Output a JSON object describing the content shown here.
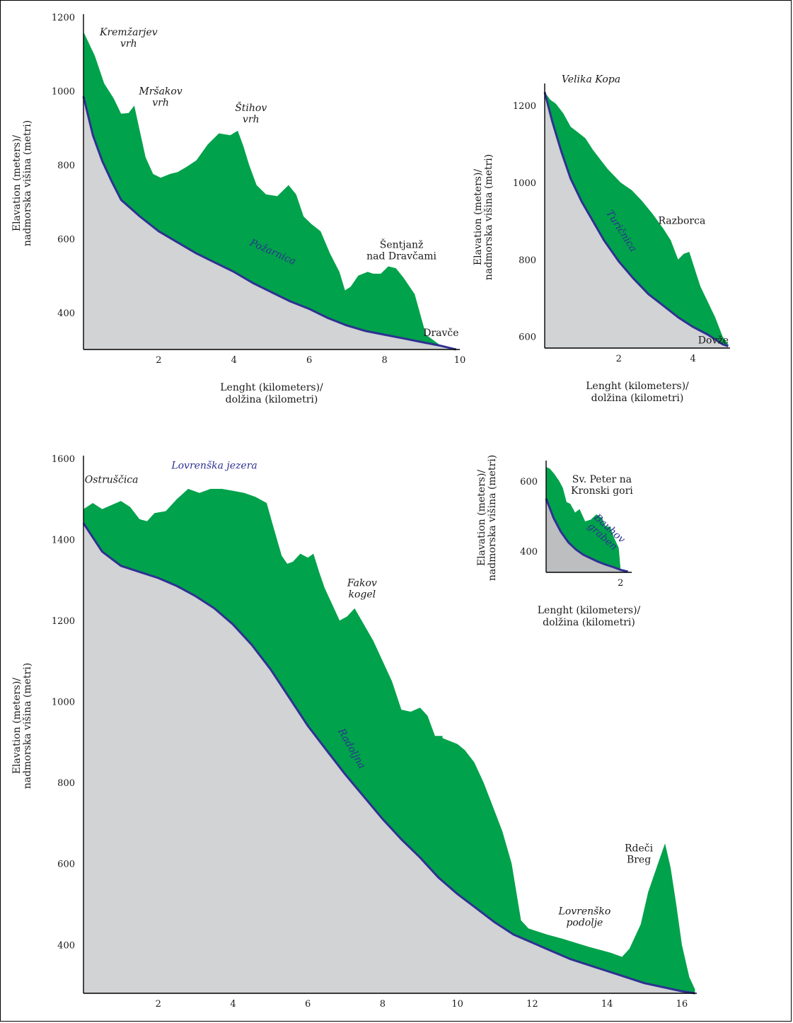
{
  "colors": {
    "terrain": "#00a24b",
    "valley": "#d1d3d4",
    "valley_small": "#bcbec0",
    "stream": "#2e3192",
    "axis": "#000000"
  },
  "chart_data": [
    {
      "id": "pozarnica",
      "type": "area",
      "xlim": [
        0,
        10
      ],
      "ylim": [
        300,
        1200
      ],
      "xticks": [
        "2",
        "4",
        "6",
        "8",
        "10"
      ],
      "yticks": [
        "400",
        "600",
        "800",
        "1000",
        "1200"
      ],
      "xlabel": [
        "Lenght (kilometers)/",
        "dolžina (kilometri)"
      ],
      "ylabel": [
        "Elavation (meters)/",
        "nadmorska višina (metri)"
      ],
      "terrain": {
        "x": [
          0,
          0.3,
          0.55,
          0.8,
          1.0,
          1.2,
          1.35,
          1.5,
          1.65,
          1.85,
          2.05,
          2.3,
          2.5,
          2.75,
          3.0,
          3.3,
          3.6,
          3.9,
          4.1,
          4.25,
          4.4,
          4.6,
          4.85,
          5.15,
          5.45,
          5.65,
          5.85,
          6.05,
          6.3,
          6.55,
          6.8,
          6.95,
          7.1,
          7.3,
          7.55,
          7.7,
          7.9,
          8.1,
          8.3,
          8.5,
          8.8,
          9.1,
          9.5,
          9.9
        ],
        "y": [
          1160,
          1095,
          1020,
          980,
          938,
          940,
          960,
          890,
          820,
          775,
          765,
          775,
          780,
          795,
          812,
          855,
          885,
          880,
          892,
          850,
          800,
          745,
          720,
          715,
          745,
          720,
          660,
          640,
          620,
          560,
          510,
          460,
          470,
          500,
          510,
          505,
          505,
          525,
          520,
          495,
          450,
          340,
          310,
          300
        ]
      },
      "stream": {
        "x": [
          0,
          0.25,
          0.5,
          0.75,
          1.0,
          1.5,
          2.0,
          2.5,
          3.0,
          3.5,
          4.0,
          4.5,
          5.0,
          5.5,
          6.0,
          6.5,
          7.0,
          7.5,
          8.0,
          8.5,
          9.0,
          9.5,
          9.9
        ],
        "y": [
          985,
          880,
          810,
          755,
          705,
          660,
          620,
          590,
          560,
          535,
          510,
          480,
          455,
          430,
          410,
          385,
          365,
          350,
          340,
          330,
          320,
          310,
          300
        ]
      },
      "labels": [
        {
          "text": [
            "Kremžarjev",
            "vrh"
          ],
          "x": 1.2,
          "y": 1150,
          "style": "italic"
        },
        {
          "text": [
            "Mršakov",
            "vrh"
          ],
          "x": 2.05,
          "y": 990,
          "style": "italic"
        },
        {
          "text": [
            "Štihov",
            "vrh"
          ],
          "x": 4.45,
          "y": 945,
          "style": "italic"
        },
        {
          "text": [
            "Šentjanž",
            "nad Dravčami"
          ],
          "x": 8.45,
          "y": 575,
          "style": "normal"
        },
        {
          "text": [
            "Dravče"
          ],
          "x": 9.5,
          "y": 336,
          "style": "normal"
        }
      ],
      "stream_name": "Požarnica",
      "stream_label_pos": {
        "x": 5.0,
        "y": 556,
        "rotate": 24
      }
    },
    {
      "id": "turicnica",
      "type": "area",
      "xlim": [
        0,
        5
      ],
      "ylim": [
        570,
        1250
      ],
      "xticks": [
        "2",
        "4"
      ],
      "yticks": [
        "600",
        "800",
        "1000",
        "1200"
      ],
      "xlabel": [
        "Lenght (kilometers)/",
        "dolžina (kilometri)"
      ],
      "ylabel": [
        "Elavation (meters)/",
        "nadmorska višina (metri)"
      ],
      "terrain": {
        "x": [
          0,
          0.15,
          0.3,
          0.5,
          0.7,
          0.9,
          1.1,
          1.3,
          1.5,
          1.7,
          1.9,
          2.05,
          2.2,
          2.35,
          2.6,
          2.9,
          3.2,
          3.4,
          3.6,
          3.75,
          3.9,
          4.05,
          4.2,
          4.4,
          4.6,
          4.8,
          4.95
        ],
        "y": [
          1235,
          1215,
          1205,
          1180,
          1145,
          1130,
          1115,
          1085,
          1060,
          1035,
          1015,
          1000,
          990,
          980,
          955,
          920,
          880,
          850,
          800,
          815,
          820,
          775,
          730,
          690,
          650,
          600,
          580
        ]
      },
      "stream": {
        "x": [
          0,
          0.2,
          0.45,
          0.7,
          1.0,
          1.3,
          1.6,
          2.0,
          2.4,
          2.8,
          3.2,
          3.6,
          4.0,
          4.4,
          4.8,
          4.95
        ],
        "y": [
          1235,
          1160,
          1080,
          1010,
          950,
          900,
          850,
          795,
          750,
          710,
          680,
          650,
          625,
          605,
          580,
          575
        ]
      },
      "labels": [
        {
          "text": [
            "Velika Kopa"
          ],
          "x": 1.25,
          "y": 1260,
          "style": "italic"
        },
        {
          "text": [
            "Razborca"
          ],
          "x": 3.7,
          "y": 893,
          "style": "normal"
        },
        {
          "text": [
            "Dovže"
          ],
          "x": 4.55,
          "y": 582,
          "style": "normal"
        }
      ],
      "stream_name": "Turičnica",
      "stream_label_pos": {
        "x": 2.0,
        "y": 870,
        "rotate": 57
      }
    },
    {
      "id": "radoljna",
      "type": "area",
      "xlim": [
        0,
        16.4
      ],
      "ylim": [
        280,
        1600
      ],
      "xticks": [
        "2",
        "4",
        "6",
        "8",
        "10",
        "12",
        "14",
        "16"
      ],
      "yticks": [
        "400",
        "600",
        "800",
        "1000",
        "1200",
        "1400",
        "1600"
      ],
      "xlabel": [
        "Lenght (kilometers)/",
        "dolžina (kilometri)"
      ],
      "ylabel": [
        "Elavation (meters)/",
        "nadmorska višina (metri)"
      ],
      "terrain": {
        "x": [
          0,
          0.25,
          0.5,
          0.75,
          1.0,
          1.25,
          1.5,
          1.7,
          1.9,
          2.2,
          2.5,
          2.8,
          3.1,
          3.4,
          3.7,
          4.0,
          4.3,
          4.6,
          4.9,
          5.05,
          5.3,
          5.45,
          5.6,
          5.8,
          6.0,
          6.15,
          6.3,
          6.45,
          6.65,
          6.85,
          7.05,
          7.25,
          7.5,
          7.75,
          8.0,
          8.25,
          8.5,
          8.75,
          9.0,
          9.2,
          9.4,
          9.6,
          9.6,
          10.0,
          10.2,
          10.45,
          10.7,
          10.95,
          11.2,
          11.45,
          11.7,
          11.9,
          12.4,
          12.8,
          13.5,
          14.1,
          14.4,
          14.6,
          14.9,
          15.1,
          15.4,
          15.55,
          15.7,
          15.85,
          16.0,
          16.2,
          16.35
        ],
        "y": [
          1475,
          1490,
          1475,
          1485,
          1495,
          1480,
          1450,
          1445,
          1465,
          1470,
          1500,
          1525,
          1515,
          1525,
          1525,
          1520,
          1515,
          1505,
          1490,
          1440,
          1360,
          1340,
          1345,
          1365,
          1355,
          1365,
          1320,
          1280,
          1240,
          1200,
          1210,
          1230,
          1190,
          1150,
          1100,
          1050,
          980,
          975,
          985,
          965,
          915,
          915,
          910,
          895,
          880,
          850,
          800,
          740,
          680,
          600,
          460,
          440,
          425,
          415,
          395,
          380,
          370,
          390,
          450,
          530,
          610,
          650,
          590,
          500,
          400,
          320,
          290
        ]
      },
      "stream": {
        "x": [
          0,
          0.5,
          1.0,
          1.5,
          2.0,
          2.5,
          3.0,
          3.5,
          4.0,
          4.5,
          5.0,
          5.5,
          6.0,
          6.5,
          7.0,
          7.5,
          8.0,
          8.5,
          9.0,
          9.5,
          10.0,
          10.5,
          11.0,
          11.5,
          12.0,
          12.5,
          13.0,
          13.5,
          14.0,
          14.5,
          15.0,
          15.5,
          16.0,
          16.35
        ],
        "y": [
          1440,
          1370,
          1335,
          1320,
          1305,
          1285,
          1260,
          1230,
          1190,
          1140,
          1080,
          1010,
          940,
          880,
          820,
          765,
          710,
          660,
          615,
          565,
          525,
          490,
          455,
          425,
          405,
          385,
          365,
          350,
          335,
          320,
          305,
          295,
          285,
          280
        ]
      },
      "labels": [
        {
          "text": [
            "Ostruščica"
          ],
          "x": 0.75,
          "y": 1540,
          "style": "italic"
        },
        {
          "text": [
            "Lovrenška jezera"
          ],
          "x": 3.5,
          "y": 1575,
          "style": "stream"
        },
        {
          "text": [
            "Fakov",
            "kogel"
          ],
          "x": 7.45,
          "y": 1285,
          "style": "italic"
        },
        {
          "text": [
            "Lovrenško",
            "podolje"
          ],
          "x": 13.4,
          "y": 475,
          "style": "italic"
        },
        {
          "text": [
            "Rdeči",
            "Breg"
          ],
          "x": 14.85,
          "y": 630,
          "style": "normal"
        }
      ],
      "stream_name": "Radoljna",
      "stream_label_pos": {
        "x": 7.1,
        "y": 880,
        "rotate": 60
      }
    },
    {
      "id": "bauhov",
      "type": "area",
      "xlim": [
        0,
        2.3
      ],
      "ylim": [
        340,
        650
      ],
      "xticks": [
        "2"
      ],
      "yticks": [
        "400",
        "600"
      ],
      "xlabel": [
        "Lenght (kilometers)/",
        "dolžina (kilometri)"
      ],
      "ylabel": [
        "Elavation (meters)/",
        "nadmorska višina (metri)"
      ],
      "terrain": {
        "x": [
          0,
          0.1,
          0.22,
          0.35,
          0.45,
          0.55,
          0.65,
          0.78,
          0.9,
          1.05,
          1.2,
          1.35,
          1.5,
          1.6,
          1.72,
          1.82,
          1.95,
          2.0,
          2.2
        ],
        "y": [
          640,
          635,
          620,
          600,
          580,
          540,
          535,
          510,
          520,
          485,
          490,
          505,
          495,
          470,
          470,
          440,
          410,
          350,
          340
        ]
      },
      "stream": {
        "x": [
          0,
          0.2,
          0.4,
          0.6,
          0.8,
          1.0,
          1.2,
          1.4,
          1.6,
          1.8,
          2.0,
          2.2
        ],
        "y": [
          550,
          495,
          455,
          425,
          405,
          390,
          380,
          370,
          362,
          355,
          347,
          342
        ]
      },
      "labels": [
        {
          "text": [
            "Sv. Peter na",
            "Kronski gori"
          ],
          "x": 1.5,
          "y": 596,
          "style": "normal"
        }
      ],
      "stream_name": [
        "Bauhov",
        "graben"
      ],
      "stream_label_pos": {
        "x": 1.65,
        "y": 458,
        "rotate": 42
      }
    }
  ]
}
